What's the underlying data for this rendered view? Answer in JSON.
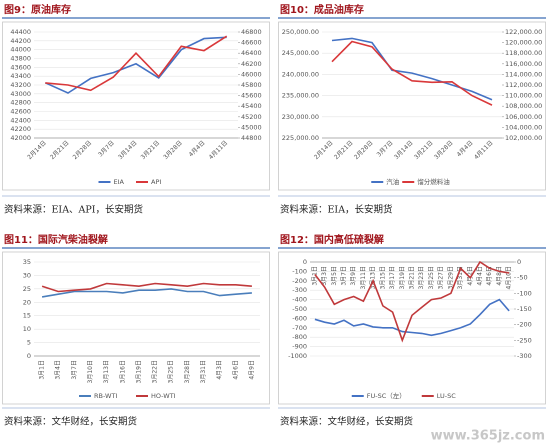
{
  "chart_data": [
    {
      "type": "line",
      "title": "图9：原油库存",
      "source": "资料来源：EIA、API，长安期货",
      "categories": [
        "2月14日",
        "2月21日",
        "2月28日",
        "3月7日",
        "3月14日",
        "3月21日",
        "3月28日",
        "4月4日",
        "4月11日"
      ],
      "series": [
        {
          "name": "EIA",
          "color": "#4472c4",
          "values": [
            43250,
            43020,
            43350,
            43480,
            43680,
            43360,
            44000,
            44250,
            44280
          ]
        },
        {
          "name": "API",
          "color": "#d9383a",
          "axis": "y2",
          "values": [
            45840,
            45800,
            45700,
            45950,
            46400,
            45960,
            46530,
            46450,
            46720
          ]
        }
      ],
      "ylim": [
        42000,
        44400
      ],
      "yticks": [
        42000,
        42200,
        42400,
        42600,
        42800,
        43000,
        43200,
        43400,
        43600,
        43800,
        44000,
        44200,
        44400
      ],
      "y2lim": [
        44800,
        46800
      ],
      "y2ticks": [
        44800,
        45000,
        45200,
        45400,
        45600,
        45800,
        46000,
        46200,
        46400,
        46600,
        46800
      ]
    },
    {
      "type": "line",
      "title": "图10：成品油库存",
      "source": "资料来源：EIA，长安期货",
      "categories": [
        "2月14日",
        "2月21日",
        "2月28日",
        "3月7日",
        "3月14日",
        "3月21日",
        "3月28日",
        "4月4日",
        "4月11日"
      ],
      "series": [
        {
          "name": "汽油",
          "color": "#4472c4",
          "values": [
            248000,
            248500,
            247500,
            241000,
            240300,
            239000,
            237500,
            236000,
            234000
          ]
        },
        {
          "name": "馏分燃料油",
          "color": "#d9383a",
          "axis": "y2",
          "values": [
            116400,
            120200,
            119200,
            115000,
            112800,
            112500,
            112600,
            110000,
            108200
          ]
        }
      ],
      "ylim": [
        225000,
        250000
      ],
      "yticks": [
        {
          "value": 225000,
          "label": "225,000.00"
        },
        {
          "value": 230000,
          "label": "230,000.00"
        },
        {
          "value": 235000,
          "label": "235,000.00"
        },
        {
          "value": 240000,
          "label": "240,000.00"
        },
        {
          "value": 245000,
          "label": "245,000.00"
        },
        {
          "value": 250000,
          "label": "250,000.00"
        }
      ],
      "y2lim": [
        102000,
        122000
      ],
      "y2ticks": [
        {
          "value": 102000,
          "label": "102,000.00"
        },
        {
          "value": 104000,
          "label": "104,000.00"
        },
        {
          "value": 106000,
          "label": "106,000.00"
        },
        {
          "value": 108000,
          "label": "108,000.00"
        },
        {
          "value": 110000,
          "label": "110,000.00"
        },
        {
          "value": 112000,
          "label": "112,000.00"
        },
        {
          "value": 114000,
          "label": "114,000.00"
        },
        {
          "value": 116000,
          "label": "116,000.00"
        },
        {
          "value": 118000,
          "label": "118,000.00"
        },
        {
          "value": 120000,
          "label": "120,000.00"
        },
        {
          "value": 122000,
          "label": "122,000.00"
        }
      ]
    },
    {
      "type": "line",
      "title": "图11：国际汽柴油裂解",
      "source": "资料来源：文华财经，长安期货",
      "categories": [
        "3月1日",
        "3月4日",
        "3月7日",
        "3月10日",
        "3月13日",
        "3月16日",
        "3月19日",
        "3月22日",
        "3月25日",
        "3月28日",
        "3月31日",
        "4月3日",
        "4月6日",
        "4月9日"
      ],
      "series": [
        {
          "name": "RB-WTI",
          "color": "#4a7ebb",
          "values": [
            22,
            23,
            24,
            24,
            24,
            23.5,
            24.5,
            24.5,
            25,
            24,
            24,
            22.5,
            23,
            23.5
          ]
        },
        {
          "name": "HO-WTI",
          "color": "#c0393b",
          "values": [
            26,
            24,
            24.5,
            25,
            27,
            26.5,
            26,
            27,
            26.5,
            26,
            27,
            26.5,
            26.5,
            26
          ]
        }
      ],
      "ylim": [
        0,
        35
      ],
      "yticks": [
        0,
        5,
        10,
        15,
        20,
        25,
        30,
        35
      ]
    },
    {
      "type": "line",
      "title": "图12：国内高低硫裂解",
      "source": "资料来源：文华财经，长安期货",
      "categories": [
        "3月1日",
        "3月3日",
        "3月5日",
        "3月7日",
        "3月9日",
        "3月11日",
        "3月13日",
        "3月15日",
        "3月17日",
        "3月19日",
        "3月21日",
        "3月23日",
        "3月25日",
        "3月27日",
        "3月29日",
        "3月31日",
        "4月2日",
        "4月4日",
        "4月6日",
        "4月8日",
        "4月10日"
      ],
      "series": [
        {
          "name": "FU-SC（左）",
          "color": "#4472c4",
          "values": [
            -610,
            -640,
            -660,
            -620,
            -680,
            -660,
            -690,
            -700,
            -700,
            -740,
            -750,
            -760,
            -780,
            -760,
            -730,
            -700,
            -660,
            -560,
            -450,
            -400,
            -520
          ]
        },
        {
          "name": "LU-SC",
          "color": "#c0393b",
          "axis": "y2",
          "values": [
            -40,
            -80,
            -135,
            -120,
            -110,
            -125,
            -60,
            -140,
            -160,
            -250,
            -170,
            -145,
            -120,
            -115,
            -100,
            -20,
            -50,
            0,
            -20,
            -30,
            -35
          ]
        }
      ],
      "ylim": [
        -1000,
        0
      ],
      "yticks": [
        0,
        -100,
        -200,
        -300,
        -400,
        -500,
        -600,
        -700,
        -800,
        -900,
        -1000
      ],
      "y2lim": [
        -300,
        0
      ],
      "y2ticks": [
        0,
        -50,
        -100,
        -150,
        -200,
        -250,
        -300
      ]
    }
  ],
  "watermark": "www.365jz.com"
}
